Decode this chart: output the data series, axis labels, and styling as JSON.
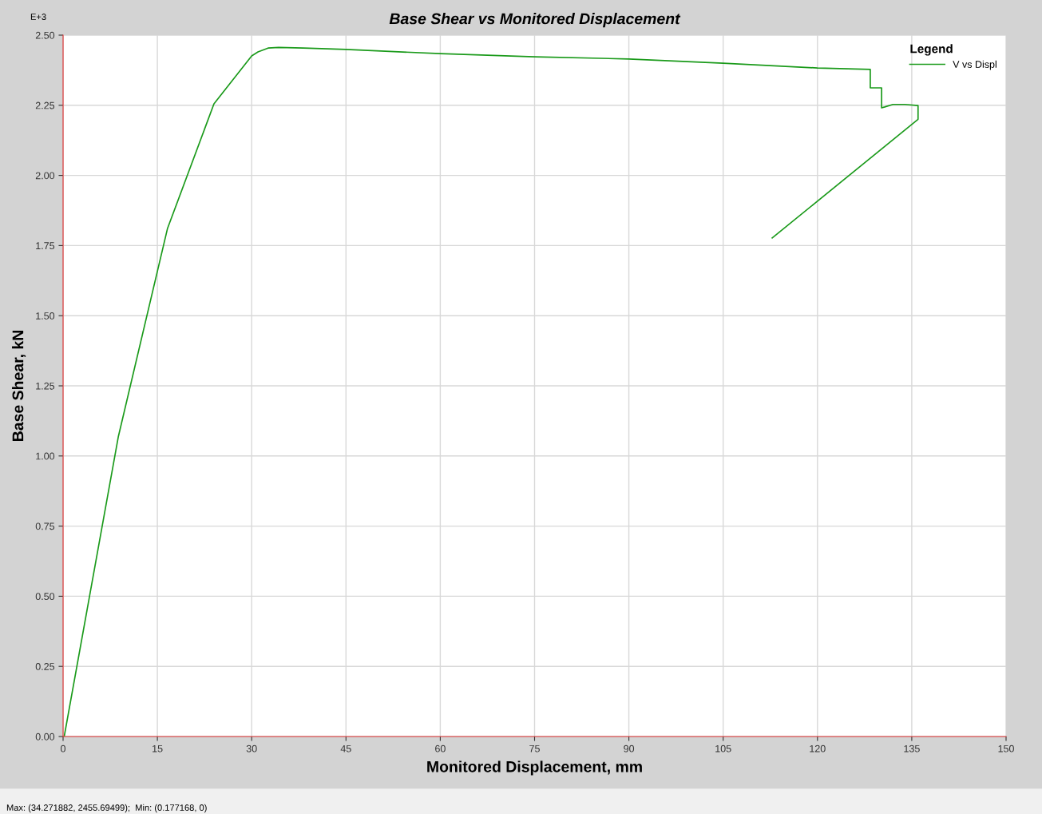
{
  "chart_data": {
    "type": "line",
    "title": "Base Shear vs Monitored Displacement",
    "xlabel": "Monitored Displacement, mm",
    "ylabel": "Base Shear, kN",
    "legend_title": "Legend",
    "annotations": [
      "E+3",
      "Max: (34.271882, 2455.69499);  Min: (0.177168, 0)"
    ],
    "series": [
      {
        "name": "V vs Displ",
        "color": "#1a9a1a",
        "x": [
          0.18,
          8.8,
          16.6,
          24.0,
          30.0,
          31.0,
          32.6,
          34.27,
          38.2,
          45,
          60,
          75,
          90,
          105,
          120,
          128.4,
          128.4,
          130.2,
          130.2,
          130.7,
          132.0,
          133.9,
          136.0,
          136.0,
          112.8
        ],
        "values": [
          0,
          1.07,
          1.81,
          2.255,
          2.426,
          2.44,
          2.454,
          2.456,
          2.454,
          2.449,
          2.434,
          2.423,
          2.415,
          2.4,
          2.383,
          2.378,
          2.312,
          2.312,
          2.241,
          2.244,
          2.253,
          2.253,
          2.249,
          2.2,
          1.777
        ]
      }
    ],
    "xlim": [
      0,
      150
    ],
    "ylim": [
      0,
      2.5
    ],
    "xticks": [
      0,
      15,
      30,
      45,
      60,
      75,
      90,
      105,
      120,
      135,
      150
    ],
    "yticks": [
      {
        "value": 0,
        "label": "0.00"
      },
      {
        "value": 0.25,
        "label": "0.25"
      },
      {
        "value": 0.5,
        "label": "0.50"
      },
      {
        "value": 0.75,
        "label": "0.75"
      },
      {
        "value": 1.0,
        "label": "1.00"
      },
      {
        "value": 1.25,
        "label": "1.25"
      },
      {
        "value": 1.5,
        "label": "1.50"
      },
      {
        "value": 1.75,
        "label": "1.75"
      },
      {
        "value": 2.0,
        "label": "2.00"
      },
      {
        "value": 2.25,
        "label": "2.25"
      },
      {
        "value": 2.5,
        "label": "2.50"
      }
    ],
    "grid": true,
    "legend": "top right",
    "marker": "none",
    "line_style": "solid"
  }
}
